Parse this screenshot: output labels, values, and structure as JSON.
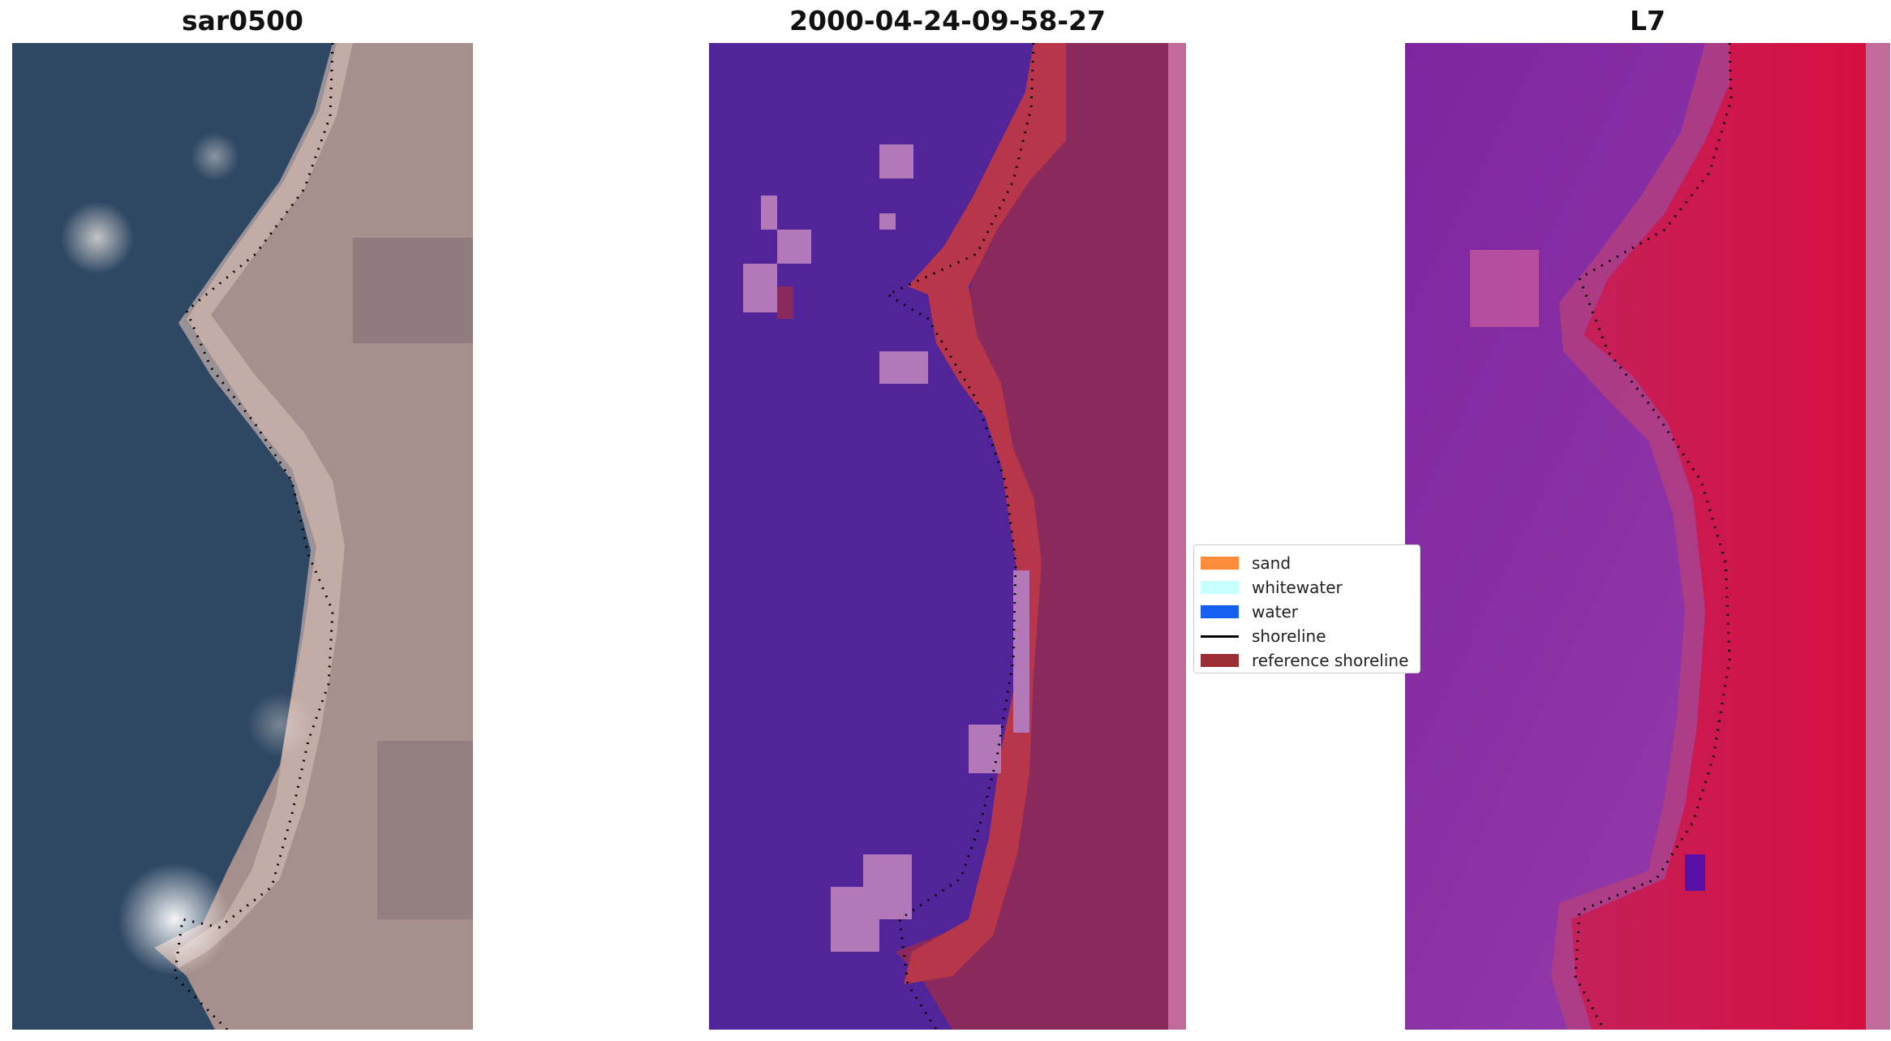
{
  "panels": {
    "left_title": "sar0500",
    "center_title": "2000-04-24-09-58-27",
    "right_title": "L7"
  },
  "legend": {
    "items": [
      {
        "label": "sand",
        "color": "#ff8c3a",
        "kind": "patch"
      },
      {
        "label": "whitewater",
        "color": "#c8ffff",
        "kind": "patch"
      },
      {
        "label": "water",
        "color": "#1560f0",
        "kind": "patch"
      },
      {
        "label": "shoreline",
        "color": "#000000",
        "kind": "line"
      },
      {
        "label": "reference shoreline",
        "color": "#9b2d35",
        "kind": "patch"
      }
    ]
  },
  "colors": {
    "rgb_water": "#2e4763",
    "rgb_land": "#a68f8c",
    "class_water": "#52249a",
    "class_land": "#8a2a5c",
    "class_reference": "#b8364a",
    "class_whitewater": "#b278b8",
    "index_water": "#8f3ba6",
    "index_land": "#d3154a",
    "edge_strip": "#c26a9a"
  }
}
